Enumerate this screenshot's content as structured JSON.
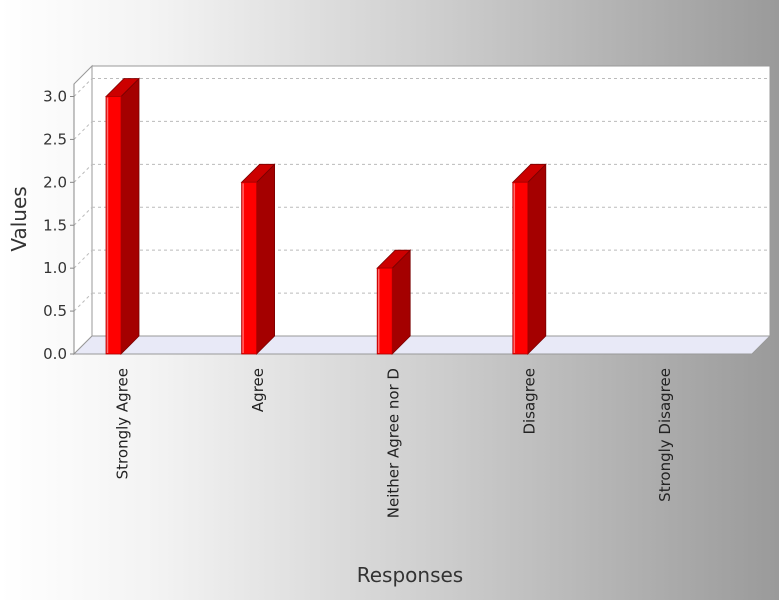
{
  "chart_data": {
    "type": "bar",
    "title": "",
    "xlabel": "Responses",
    "ylabel": "Values",
    "categories": [
      "Strongly Agree",
      "Agree",
      "Neither Agree nor D",
      "Disagree",
      "Strongly Disagree"
    ],
    "values": [
      3,
      2,
      1,
      2,
      0
    ],
    "ylim": [
      0,
      3.0
    ],
    "yticks": [
      "0.0",
      "0.5",
      "1.0",
      "1.5",
      "2.0",
      "2.5",
      "3.0"
    ],
    "grid": true,
    "legend": "none",
    "bar_color": "#ff0000",
    "bar_side_color": "#a40000",
    "bar_top_color": "#cc0000",
    "plot_background": "#ffffff",
    "floor_color": "#e8e9f7"
  }
}
